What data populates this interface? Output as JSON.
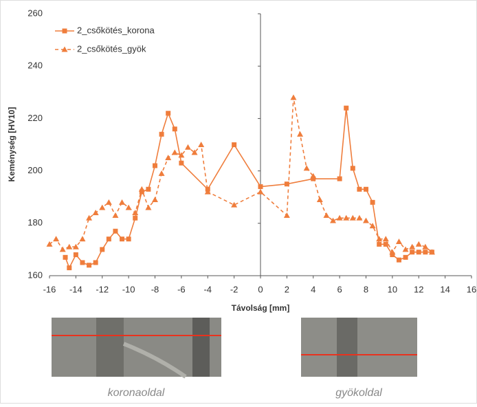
{
  "chart_data": {
    "type": "line",
    "y_label": "Keménység [HV10]",
    "x_label": "Távolság [mm]",
    "xlim": [
      -16,
      16
    ],
    "xticks": [
      -16,
      -14,
      -12,
      -10,
      -8,
      -6,
      -4,
      -2,
      0,
      2,
      4,
      6,
      8,
      10,
      12,
      14,
      16
    ],
    "ylim": [
      160,
      260
    ],
    "yticks": [
      160,
      180,
      200,
      220,
      240,
      260
    ],
    "legend": "upper left",
    "series": [
      {
        "name": "2_csőkötés_korona",
        "color": "#ef7d3c",
        "marker": "square",
        "dashed": false,
        "x": [
          -14.8,
          -14.5,
          -14,
          -13.5,
          -13,
          -12.5,
          -12,
          -11.5,
          -11,
          -10.5,
          -10,
          -9.5,
          -9,
          -8.5,
          -8,
          -7.5,
          -7,
          -6.5,
          -6,
          -4,
          -2,
          0,
          2,
          4,
          6,
          6.5,
          7,
          7.5,
          8,
          8.5,
          9,
          9.5,
          10,
          10.5,
          11,
          11.5,
          12,
          12.5,
          13
        ],
        "values": [
          167,
          163,
          168,
          165,
          164,
          165,
          170,
          174,
          177,
          174,
          174,
          182,
          192,
          193,
          202,
          214,
          222,
          216,
          203,
          193,
          210,
          194,
          195,
          197,
          197,
          224,
          201,
          193,
          193,
          188,
          172,
          172,
          168,
          166,
          167,
          169,
          169,
          169,
          169
        ]
      },
      {
        "name": "2_csőkötés_gyök",
        "color": "#ef7d3c",
        "marker": "triangle",
        "dashed": true,
        "x": [
          -16,
          -15.5,
          -15,
          -14.5,
          -14,
          -13.5,
          -13,
          -12.5,
          -12,
          -11.5,
          -11,
          -10.5,
          -10,
          -9.5,
          -9,
          -8.5,
          -8,
          -7.5,
          -7,
          -6.5,
          -6,
          -5.5,
          -5,
          -4.5,
          -4,
          -2,
          0,
          2,
          2.5,
          3,
          3.5,
          4,
          4.5,
          5,
          5.5,
          6,
          6.5,
          7,
          7.5,
          8,
          8.5,
          9,
          9.5,
          10,
          10.5,
          11,
          11.5,
          12,
          12.5,
          13
        ],
        "values": [
          172,
          174,
          170,
          171,
          171,
          174,
          182,
          184,
          186,
          188,
          183,
          188,
          186,
          184,
          193,
          186,
          189,
          199,
          205,
          207,
          206,
          209,
          207,
          210,
          192,
          187,
          192,
          183,
          228,
          214,
          201,
          198,
          189,
          183,
          181,
          182,
          182,
          182,
          182,
          181,
          179,
          174,
          174,
          169,
          173,
          170,
          171,
          172,
          171,
          169
        ]
      }
    ]
  },
  "images": [
    {
      "caption": "koronaoldal"
    },
    {
      "caption": "gyökoldal"
    }
  ]
}
